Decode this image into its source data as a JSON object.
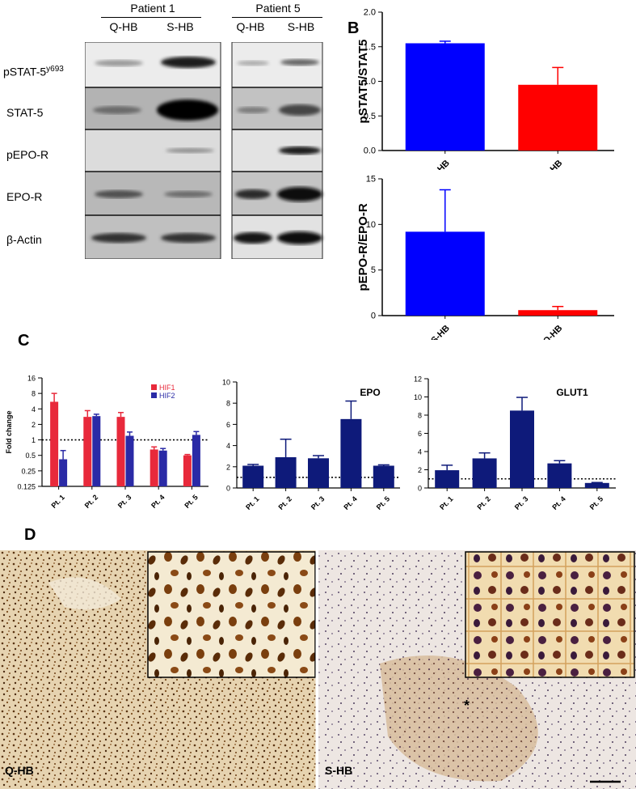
{
  "panels": {
    "a": "",
    "b": "B",
    "c": "C",
    "d": "D"
  },
  "western_blot": {
    "groups": [
      {
        "patient": "Patient 1",
        "lanes": [
          "Q-HB",
          "S-HB"
        ]
      },
      {
        "patient": "Patient 5",
        "lanes": [
          "Q-HB",
          "S-HB"
        ]
      }
    ],
    "rows": [
      {
        "label": "pSTAT-5",
        "superscript": "y693"
      },
      {
        "label": "STAT-5",
        "superscript": ""
      },
      {
        "label": "pEPO-R",
        "superscript": ""
      },
      {
        "label": "EPO-R",
        "superscript": ""
      },
      {
        "label": "β-Actin",
        "superscript": ""
      }
    ]
  },
  "chart_data": [
    {
      "id": "b-top",
      "type": "bar",
      "categories": [
        "S-HB",
        "Q-HB"
      ],
      "values": [
        1.55,
        0.95
      ],
      "errors": [
        0.03,
        0.25
      ],
      "colors": [
        "#0000ff",
        "#ff0000"
      ],
      "ylabel": "pSTAT5/STAT5",
      "ylim": [
        0,
        2.0
      ],
      "yticks": [
        "0.0",
        "0.5",
        "1.0",
        "1.5",
        "2.0"
      ],
      "ytick_values": [
        0,
        0.5,
        1.0,
        1.5,
        2.0
      ]
    },
    {
      "id": "b-bottom",
      "type": "bar",
      "categories": [
        "S-HB",
        "Q-HB"
      ],
      "values": [
        9.2,
        0.6
      ],
      "errors": [
        4.6,
        0.4
      ],
      "colors": [
        "#0000ff",
        "#ff0000"
      ],
      "ylabel": "pEPO-R/EPO-R",
      "ylim": [
        0,
        15
      ],
      "yticks": [
        "0",
        "5",
        "10",
        "15"
      ],
      "ytick_values": [
        0,
        5,
        10,
        15
      ]
    },
    {
      "id": "c-hif",
      "type": "bar",
      "scale": "log2",
      "categories": [
        "Pt. 1",
        "Pt. 2",
        "Pt. 3",
        "Pt. 4",
        "Pt. 5"
      ],
      "series": [
        {
          "name": "HIF1",
          "color": "#e8293b",
          "values": [
            5.5,
            2.8,
            2.8,
            0.65,
            0.5
          ],
          "errors": [
            2.5,
            0.9,
            0.6,
            0.08,
            0.02
          ]
        },
        {
          "name": "HIF2",
          "color": "#2a2aa6",
          "values": [
            0.42,
            2.9,
            1.2,
            0.62,
            1.25
          ],
          "errors": [
            0.2,
            0.25,
            0.22,
            0.06,
            0.2
          ]
        }
      ],
      "ylabel": "Fold change",
      "ylim": [
        0.125,
        16
      ],
      "yticks": [
        "16",
        "8",
        "4",
        "2",
        "1",
        "0.5",
        "0.25",
        "0.125"
      ],
      "ytick_values": [
        16,
        8,
        4,
        2,
        1,
        0.5,
        0.25,
        0.125
      ],
      "reference_line": 1,
      "legend": "top-right"
    },
    {
      "id": "c-epo",
      "type": "bar",
      "title": "EPO",
      "categories": [
        "Pt. 1",
        "Pt. 2",
        "Pt. 3",
        "Pt. 4",
        "Pt. 5"
      ],
      "values": [
        2.1,
        2.9,
        2.8,
        6.5,
        2.1
      ],
      "errors": [
        0.12,
        1.7,
        0.25,
        1.7,
        0.08
      ],
      "colors": [
        "#0e1a7a"
      ],
      "ylim": [
        0,
        10
      ],
      "yticks": [
        "0",
        "2",
        "4",
        "6",
        "8",
        "10"
      ],
      "ytick_values": [
        0,
        2,
        4,
        6,
        8,
        10
      ],
      "reference_line": 1
    },
    {
      "id": "c-glut1",
      "type": "bar",
      "title": "GLUT1",
      "categories": [
        "Pt. 1",
        "Pt. 2",
        "Pt. 3",
        "Pt. 4",
        "Pt. 5"
      ],
      "values": [
        1.95,
        3.25,
        8.5,
        2.7,
        0.55
      ],
      "errors": [
        0.55,
        0.6,
        1.45,
        0.3,
        0.05
      ],
      "colors": [
        "#0e1a7a"
      ],
      "ylim": [
        0,
        12
      ],
      "yticks": [
        "0",
        "2",
        "4",
        "6",
        "8",
        "10",
        "12"
      ],
      "ytick_values": [
        0,
        2,
        4,
        6,
        8,
        10,
        12
      ],
      "reference_line": 1
    }
  ],
  "ihc": {
    "left_label": "Q-HB",
    "right_label": "S-HB",
    "asterisk": "*"
  }
}
